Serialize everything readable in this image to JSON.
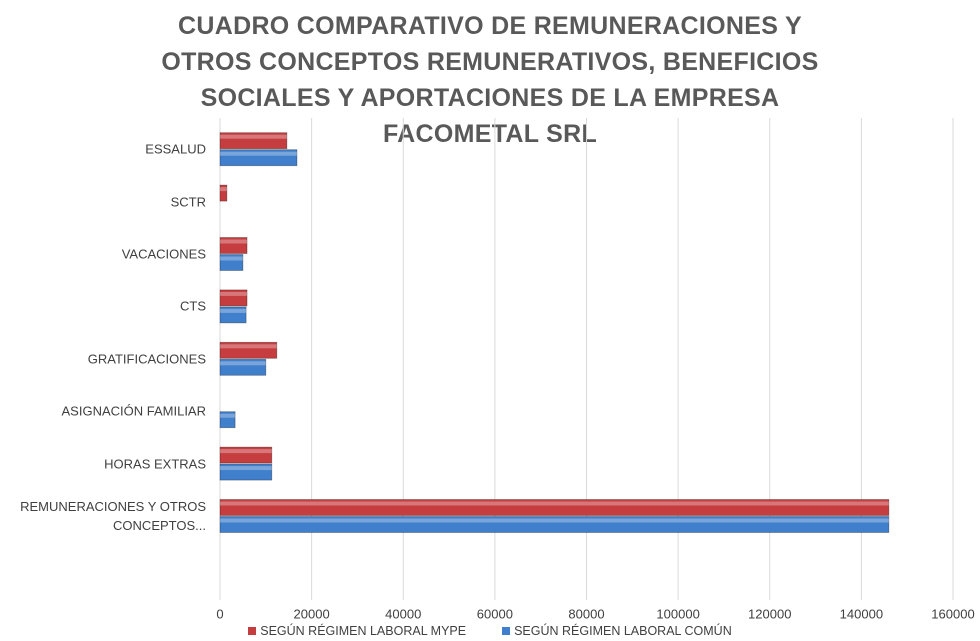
{
  "chart_data": {
    "type": "barh",
    "title": "CUADRO COMPARATIVO DE REMUNERACIONES Y OTROS CONCEPTOS REMUNERATIVOS, BENEFICIOS SOCIALES Y APORTACIONES DE LA EMPRESA FACOMETAL SRL",
    "categories": [
      "ESSALUD",
      "SCTR",
      "VACACIONES",
      "CTS",
      "GRATIFICACIONES",
      "ASIGNACIÓN FAMILIAR",
      "HORAS EXTRAS",
      "REMUNERACIONES Y OTROS CONCEPTOS..."
    ],
    "series": [
      {
        "name": "SEGÚN RÉGIMEN LABORAL MYPE",
        "color": "#c63d3f",
        "values": [
          14600,
          1500,
          5900,
          5900,
          12400,
          0,
          11300,
          146000
        ]
      },
      {
        "name": "SEGÚN RÉGIMEN LABORAL COMÚN",
        "color": "#3f7fcc",
        "values": [
          16800,
          0,
          5000,
          5700,
          10000,
          3300,
          11300,
          146000
        ]
      }
    ],
    "xlim": [
      0,
      160000
    ],
    "xticks": [
      0,
      20000,
      40000,
      60000,
      80000,
      100000,
      120000,
      140000,
      160000
    ],
    "grid": true,
    "legend": "bottom"
  }
}
